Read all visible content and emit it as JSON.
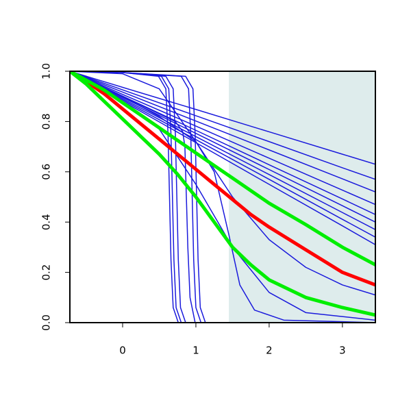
{
  "chart_data": {
    "type": "line",
    "xlim": [
      -0.72,
      3.45
    ],
    "ylim": [
      0,
      1
    ],
    "xticks": [
      0,
      1,
      2,
      3
    ],
    "yticks": [
      {
        "value": 0,
        "label": "0.0"
      },
      0.2,
      0.4,
      0.6,
      0.8,
      {
        "value": 1,
        "label": "1.0"
      }
    ],
    "shaded_region": {
      "x": [
        1.45,
        3.45
      ],
      "color": "#deecec"
    },
    "series": [
      {
        "color": "#1a1adc",
        "width": 1.5,
        "x": [
          -0.72,
          0,
          1,
          2,
          3,
          3.45
        ],
        "values": [
          1,
          0.936,
          0.848,
          0.759,
          0.67,
          0.63
        ]
      },
      {
        "color": "#1a1adc",
        "width": 1.5,
        "x": [
          -0.72,
          0,
          1,
          2,
          3,
          3.45
        ],
        "values": [
          1,
          0.926,
          0.823,
          0.72,
          0.616,
          0.57
        ]
      },
      {
        "color": "#1a1adc",
        "width": 1.5,
        "x": [
          -0.72,
          0,
          1,
          2,
          3,
          3.45
        ],
        "values": [
          1,
          0.917,
          0.802,
          0.687,
          0.572,
          0.52
        ]
      },
      {
        "color": "#1a1adc",
        "width": 1.5,
        "x": [
          -0.72,
          0,
          1,
          2,
          3,
          3.45
        ],
        "values": [
          1,
          0.908,
          0.782,
          0.654,
          0.527,
          0.47
        ]
      },
      {
        "color": "#1a1adc",
        "width": 1.5,
        "x": [
          -0.72,
          0,
          1,
          2,
          3,
          3.45
        ],
        "values": [
          1,
          0.901,
          0.765,
          0.628,
          0.492,
          0.43
        ]
      },
      {
        "color": "#1a1adc",
        "width": 1.5,
        "x": [
          -0.72,
          0,
          1,
          2,
          3,
          3.45
        ],
        "values": [
          1,
          0.896,
          0.753,
          0.609,
          0.465,
          0.4
        ]
      },
      {
        "color": "#1a1adc",
        "width": 1.5,
        "x": [
          -0.72,
          0,
          1,
          2,
          3,
          3.45
        ],
        "values": [
          1,
          0.891,
          0.74,
          0.589,
          0.438,
          0.37
        ]
      },
      {
        "color": "#1a1adc",
        "width": 1.5,
        "x": [
          -0.72,
          0,
          1,
          2,
          3,
          3.45
        ],
        "values": [
          1,
          0.886,
          0.728,
          0.57,
          0.411,
          0.34
        ]
      },
      {
        "color": "#1a1adc",
        "width": 1.5,
        "x": [
          -0.72,
          0,
          1,
          2,
          3,
          3.45
        ],
        "values": [
          1,
          0.881,
          0.716,
          0.55,
          0.385,
          0.31
        ]
      },
      {
        "color": "#1a1adc",
        "width": 1.5,
        "x": [
          -0.72,
          0,
          0.5,
          1,
          1.5,
          2,
          2.5,
          3,
          3.45
        ],
        "values": [
          1,
          0.99,
          0.93,
          0.72,
          0.5,
          0.33,
          0.22,
          0.15,
          0.11
        ]
      },
      {
        "color": "#1a1adc",
        "width": 1.5,
        "x": [
          -0.72,
          0,
          0.5,
          1,
          1.25,
          1.45,
          1.6,
          1.8,
          2.2,
          3.45
        ],
        "values": [
          1,
          0.9,
          0.82,
          0.72,
          0.6,
          0.35,
          0.15,
          0.05,
          0.01,
          0
        ]
      },
      {
        "color": "#1a1adc",
        "width": 1.5,
        "x": [
          -0.72,
          0,
          0.5,
          1,
          1.5,
          2,
          2.5,
          3.45
        ],
        "values": [
          1,
          0.88,
          0.77,
          0.55,
          0.3,
          0.12,
          0.04,
          0.01
        ]
      },
      {
        "color": "#1a1adc",
        "width": 1.5,
        "x": [
          -0.72,
          0,
          0.49,
          0.59,
          0.62,
          0.64,
          0.66,
          0.69,
          0.76,
          3.45
        ],
        "values": [
          1,
          0.995,
          0.98,
          0.93,
          0.75,
          0.5,
          0.25,
          0.06,
          0,
          0
        ]
      },
      {
        "color": "#1a1adc",
        "width": 1.5,
        "x": [
          -0.72,
          0,
          0.53,
          0.63,
          0.66,
          0.68,
          0.7,
          0.73,
          0.8,
          3.45
        ],
        "values": [
          1,
          0.995,
          0.98,
          0.93,
          0.75,
          0.5,
          0.25,
          0.06,
          0,
          0
        ]
      },
      {
        "color": "#1a1adc",
        "width": 1.5,
        "x": [
          -0.72,
          0,
          0.59,
          0.69,
          0.72,
          0.74,
          0.76,
          0.79,
          0.86,
          3.45
        ],
        "values": [
          1,
          0.995,
          0.98,
          0.93,
          0.75,
          0.5,
          0.25,
          0.06,
          0,
          0
        ]
      },
      {
        "color": "#1a1adc",
        "width": 1.5,
        "x": [
          -0.72,
          0,
          0.72,
          0.82,
          0.85,
          0.87,
          0.89,
          0.92,
          0.99,
          3.45
        ],
        "values": [
          1,
          0.9,
          0.8,
          0.76,
          0.7,
          0.5,
          0.3,
          0.1,
          0,
          0
        ]
      },
      {
        "color": "#1a1adc",
        "width": 1.5,
        "x": [
          -0.72,
          0,
          0.8,
          0.9,
          0.93,
          0.95,
          0.97,
          1,
          1.07,
          3.45
        ],
        "values": [
          1,
          0.995,
          0.98,
          0.93,
          0.75,
          0.5,
          0.25,
          0.06,
          0,
          0
        ]
      },
      {
        "color": "#1a1adc",
        "width": 1.5,
        "x": [
          -0.72,
          0,
          0.86,
          0.96,
          0.99,
          1.01,
          1.03,
          1.06,
          1.13,
          3.45
        ],
        "values": [
          1,
          0.995,
          0.98,
          0.93,
          0.75,
          0.5,
          0.25,
          0.06,
          0,
          0
        ]
      },
      {
        "color": "#ff0000",
        "width": 5,
        "x": [
          -0.72,
          -0.5,
          -0.25,
          0,
          0.25,
          0.5,
          0.75,
          1,
          1.25,
          1.5,
          1.75,
          2,
          2.5,
          3,
          3.45
        ],
        "values": [
          1,
          0.96,
          0.91,
          0.85,
          0.79,
          0.73,
          0.67,
          0.61,
          0.55,
          0.49,
          0.43,
          0.38,
          0.29,
          0.2,
          0.15
        ]
      },
      {
        "color": "#00ee00",
        "width": 5,
        "x": [
          -0.72,
          -0.5,
          -0.25,
          0,
          0.25,
          0.5,
          0.75,
          1,
          1.25,
          1.5,
          1.75,
          2,
          2.5,
          3,
          3.45
        ],
        "values": [
          1,
          0.965,
          0.925,
          0.875,
          0.825,
          0.775,
          0.725,
          0.675,
          0.625,
          0.575,
          0.525,
          0.475,
          0.39,
          0.3,
          0.23
        ]
      },
      {
        "color": "#00ee00",
        "width": 5,
        "x": [
          -0.72,
          -0.5,
          -0.25,
          0,
          0.25,
          0.5,
          0.75,
          1,
          1.25,
          1.5,
          1.75,
          2,
          2.5,
          3,
          3.45
        ],
        "values": [
          1,
          0.95,
          0.88,
          0.81,
          0.74,
          0.67,
          0.59,
          0.5,
          0.4,
          0.3,
          0.23,
          0.17,
          0.1,
          0.06,
          0.03
        ]
      }
    ]
  }
}
